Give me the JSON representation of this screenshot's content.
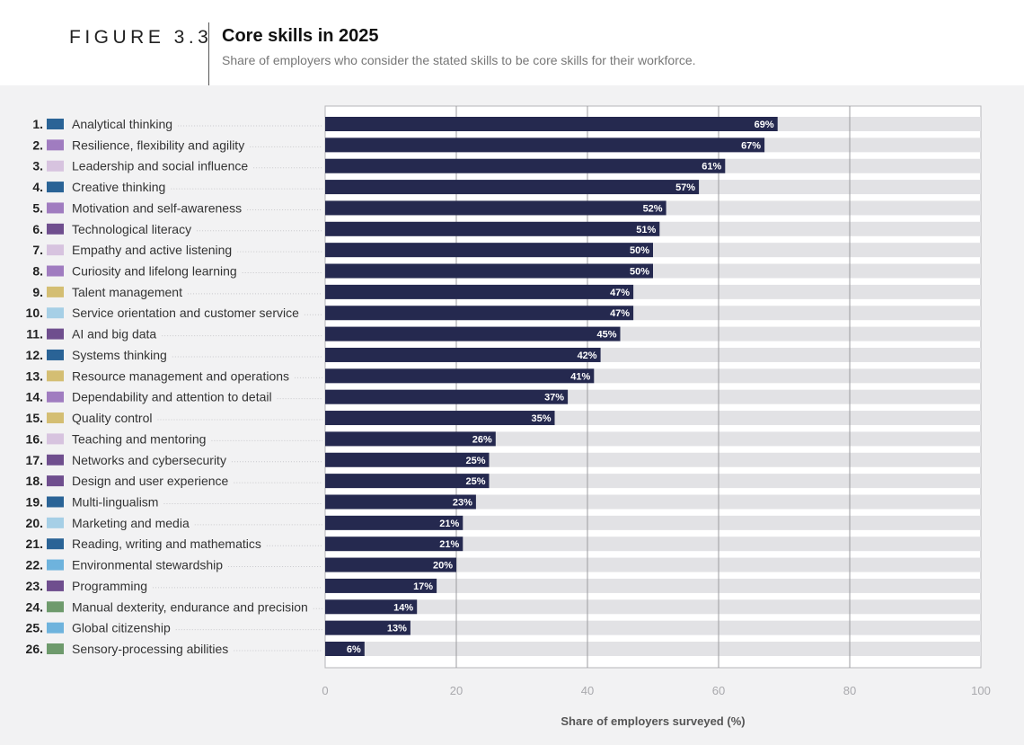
{
  "header": {
    "figure_label": "FIGURE 3.3",
    "title": "Core skills in 2025",
    "subtitle": "Share of employers who consider the stated skills to be core skills for their workforce."
  },
  "colors": {
    "bar": "#25294f",
    "track": "#e2e2e5",
    "dots": "#c9c9cc"
  },
  "chart_data": {
    "type": "bar",
    "orientation": "horizontal",
    "title": "Core skills in 2025",
    "subtitle": "Share of employers who consider the stated skills to be core skills for their workforce.",
    "xlabel": "Share of employers surveyed (%)",
    "ylabel": "",
    "xlim": [
      0,
      100
    ],
    "xticks": [
      0,
      20,
      40,
      60,
      80,
      100
    ],
    "grid": true,
    "ranks": [
      "1.",
      "2.",
      "3.",
      "4.",
      "5.",
      "6.",
      "7.",
      "8.",
      "9.",
      "10.",
      "11.",
      "12.",
      "13.",
      "14.",
      "15.",
      "16.",
      "17.",
      "18.",
      "19.",
      "20.",
      "21.",
      "22.",
      "23.",
      "24.",
      "25.",
      "26."
    ],
    "categories": [
      "Analytical thinking",
      "Resilience, flexibility and agility",
      "Leadership and social influence",
      "Creative thinking",
      "Motivation and self-awareness",
      "Technological literacy",
      "Empathy and active listening",
      "Curiosity and lifelong learning",
      "Talent management",
      "Service orientation and customer service",
      "AI and big data",
      "Systems thinking",
      "Resource management and operations",
      "Dependability and attention to detail",
      "Quality control",
      "Teaching and mentoring",
      "Networks and cybersecurity",
      "Design and user experience",
      "Multi-lingualism",
      "Marketing and media",
      "Reading, writing and mathematics",
      "Environmental stewardship",
      "Programming",
      "Manual dexterity, endurance and precision",
      "Global citizenship",
      "Sensory-processing abilities"
    ],
    "values": [
      69,
      67,
      61,
      57,
      52,
      51,
      50,
      50,
      47,
      47,
      45,
      42,
      41,
      37,
      35,
      26,
      25,
      25,
      23,
      21,
      21,
      20,
      17,
      14,
      13,
      6
    ],
    "labels": [
      "69%",
      "67%",
      "61%",
      "57%",
      "52%",
      "51%",
      "50%",
      "50%",
      "47%",
      "47%",
      "45%",
      "42%",
      "41%",
      "37%",
      "35%",
      "26%",
      "25%",
      "25%",
      "23%",
      "21%",
      "21%",
      "20%",
      "17%",
      "14%",
      "13%",
      "6%"
    ],
    "category_colors": [
      "#2a6396",
      "#a07cc0",
      "#d7c3df",
      "#2a6396",
      "#a07cc0",
      "#6f4e8e",
      "#d7c3df",
      "#a07cc0",
      "#d4be73",
      "#a6cfe6",
      "#6f4e8e",
      "#2a6396",
      "#d4be73",
      "#a07cc0",
      "#d4be73",
      "#d7c3df",
      "#6f4e8e",
      "#6f4e8e",
      "#2a6396",
      "#a6cfe6",
      "#2a6396",
      "#6eb3dd",
      "#6f4e8e",
      "#6e9a6c",
      "#6eb3dd",
      "#6e9a6c"
    ]
  }
}
